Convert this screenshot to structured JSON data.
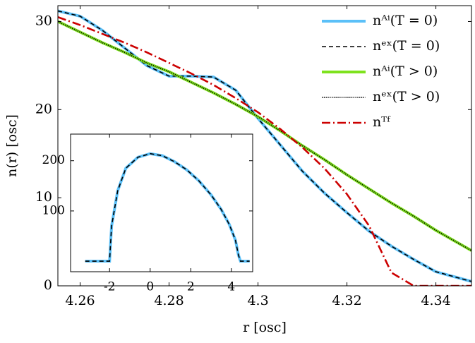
{
  "chart_data": [
    {
      "type": "line",
      "x_label": "r [osc]",
      "y_label": "n(r) [osc]",
      "x": [
        4.255,
        4.26,
        4.265,
        4.27,
        4.275,
        4.28,
        4.285,
        4.29,
        4.295,
        4.3,
        4.305,
        4.31,
        4.315,
        4.32,
        4.325,
        4.33,
        4.335,
        4.34,
        4.348
      ],
      "series": [
        {
          "name": "nᴬⁱ(T = 0)",
          "color": "#5bc0f8",
          "style": "solid-thick",
          "values": [
            31.2,
            30.6,
            29,
            27,
            25,
            23.8,
            23.8,
            23.7,
            22.2,
            19,
            16,
            13,
            10.5,
            8.3,
            6.2,
            4.5,
            3,
            1.6,
            0.5
          ]
        },
        {
          "name": "nᵉˣ(T = 0)",
          "color": "#000000",
          "style": "dashed",
          "values": [
            31.2,
            30.6,
            29,
            27,
            25,
            23.8,
            23.8,
            23.7,
            22.2,
            19,
            16,
            13,
            10.5,
            8.3,
            6.2,
            4.5,
            3,
            1.6,
            0.5
          ]
        },
        {
          "name": "nᴬⁱ(T > 0)",
          "color": "#7ee21d",
          "style": "solid-thick",
          "values": [
            30,
            28.8,
            27.6,
            26.5,
            25.3,
            24.3,
            23.1,
            21.9,
            20.6,
            19.2,
            17.6,
            15.9,
            14.3,
            12.6,
            11,
            9.4,
            7.9,
            6.3,
            4
          ]
        },
        {
          "name": "nᵉˣ(T > 0)",
          "color": "#000000",
          "style": "dotted",
          "values": [
            30,
            28.8,
            27.6,
            26.5,
            25.3,
            24.3,
            23.1,
            21.9,
            20.6,
            19.2,
            17.6,
            15.9,
            14.3,
            12.6,
            11,
            9.4,
            7.9,
            6.3,
            4
          ]
        },
        {
          "name": "nᵀᶠ",
          "color": "#cc0000",
          "style": "dashdot",
          "values": [
            30.5,
            29.6,
            28.6,
            27.6,
            26.5,
            25.3,
            24.1,
            22.8,
            21.3,
            19.7,
            17.8,
            15.7,
            13.3,
            10.4,
            6.8,
            1.5,
            0,
            0,
            0
          ]
        }
      ],
      "xlim": [
        4.255,
        4.348
      ],
      "xticks": [
        4.26,
        4.28,
        4.3,
        4.32,
        4.34
      ],
      "ylim": [
        0,
        31.8
      ],
      "yticks": [
        0,
        10,
        20,
        30
      ],
      "legend": "top-right"
    },
    {
      "type": "line",
      "x": [
        -3.2,
        -2,
        -1.9,
        -1.6,
        -1.2,
        -0.6,
        0,
        0.6,
        1.2,
        1.8,
        2.4,
        3,
        3.5,
        3.9,
        4.2,
        4.35,
        4.45,
        4.9
      ],
      "series": [
        {
          "color": "#5bc0f8",
          "style": "solid-thick",
          "values": [
            0,
            0,
            70,
            140,
            185,
            207,
            214,
            210,
            198,
            182,
            160,
            132,
            103,
            73,
            42,
            12,
            0,
            0
          ]
        },
        {
          "color": "#000000",
          "style": "dashed",
          "values": [
            0,
            0,
            70,
            140,
            185,
            207,
            214,
            210,
            198,
            182,
            160,
            132,
            103,
            73,
            42,
            12,
            0,
            0
          ]
        }
      ],
      "xlim": [
        -3.92,
        5.05
      ],
      "xticks": [
        -2,
        0,
        2,
        4
      ],
      "ylim": [
        -21,
        253
      ],
      "yticks": [
        100,
        200
      ]
    }
  ]
}
